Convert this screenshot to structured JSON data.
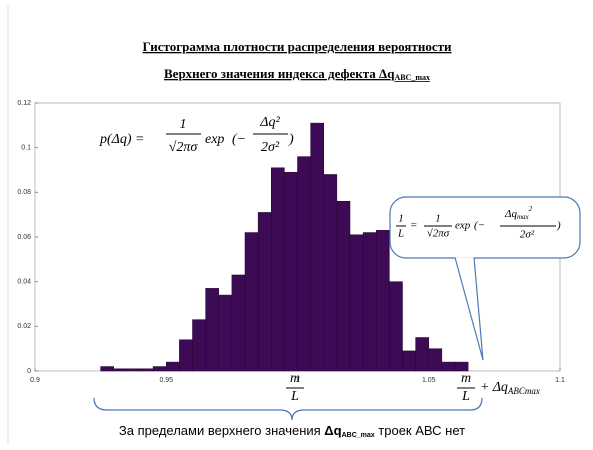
{
  "chart_data": {
    "type": "histogram",
    "title": "Гистограмма плотности распределения  вероятности",
    "subtitle": "Верхнего значения индекса дефекта  Δq",
    "subtitle_subscript": "ABC_max",
    "bins": [
      0.925,
      0.93,
      0.935,
      0.94,
      0.945,
      0.95,
      0.955,
      0.96,
      0.965,
      0.97,
      0.975,
      0.98,
      0.985,
      0.99,
      0.995,
      1.0,
      1.005,
      1.01,
      1.015,
      1.02,
      1.025,
      1.03,
      1.035,
      1.04,
      1.045,
      1.05,
      1.055,
      1.06,
      1.065
    ],
    "values": [
      0.002,
      0.001,
      0.001,
      0.001,
      0.002,
      0.004,
      0.014,
      0.023,
      0.037,
      0.034,
      0.043,
      0.062,
      0.071,
      0.091,
      0.089,
      0.096,
      0.111,
      0.088,
      0.076,
      0.061,
      0.062,
      0.063,
      0.04,
      0.009,
      0.015,
      0.01,
      0.004,
      0.004
    ],
    "color": "#3d0a55",
    "xlim": [
      0.9,
      1.1
    ],
    "ylim": [
      0,
      0.12
    ],
    "xticks": [
      0.9,
      0.95,
      1,
      1.05,
      1.1
    ],
    "yticks": [
      0,
      0.02,
      0.04,
      0.06,
      0.08,
      0.1,
      0.12
    ],
    "formula_density": [
      "p(Δq) =",
      "1",
      "√2πσ",
      "exp",
      "(−",
      "Δq²",
      "2σ²",
      ")"
    ],
    "formula_callout": [
      "1",
      "L",
      "=",
      "1",
      "√2πσ",
      "exp",
      "(−",
      "Δq",
      "max",
      "2",
      "2σ²",
      ")"
    ],
    "marker_mean": [
      "m",
      "L"
    ],
    "marker_upper": [
      "m",
      "L",
      "+ Δq",
      "ABCmax"
    ],
    "caption": [
      "За пределами верхнего значения ",
      "Δq",
      "ABC_max",
      " троек АВС нет"
    ]
  }
}
